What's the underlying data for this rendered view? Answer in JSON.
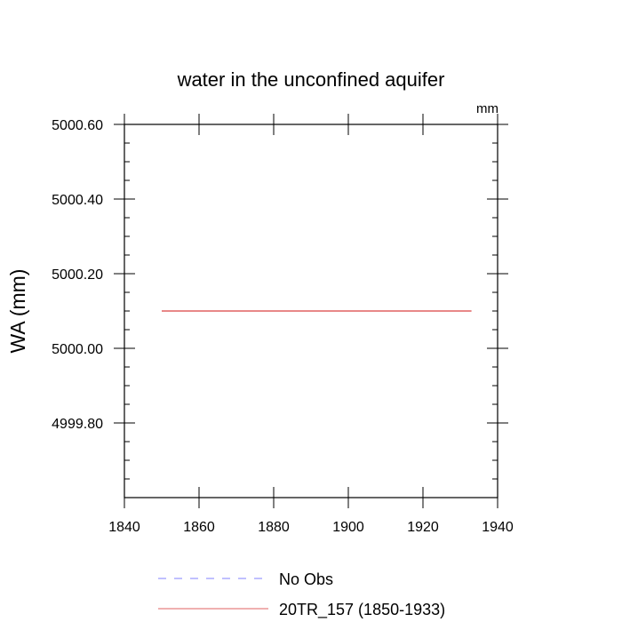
{
  "chart_data": {
    "type": "line",
    "title": "water in the unconfined aquifer",
    "units": "mm",
    "ylabel": "WA  (mm)",
    "xlabel": "",
    "xlim": [
      1840,
      1940
    ],
    "ylim": [
      4999.6,
      5000.6
    ],
    "x_ticks": [
      1840,
      1860,
      1880,
      1900,
      1920,
      1940
    ],
    "x_tick_labels": [
      "1840",
      "1860",
      "1880",
      "1900",
      "1920",
      "1940"
    ],
    "y_ticks": [
      4999.8,
      5000.0,
      5000.2,
      5000.4,
      5000.6
    ],
    "y_tick_labels": [
      "4999.80",
      "5000.00",
      "5000.20",
      "5000.40",
      "5000.60"
    ],
    "series": [
      {
        "name": "No Obs",
        "color": "#8080ff",
        "style": "dashed",
        "x": [],
        "y": []
      },
      {
        "name": "20TR_157 (1850-1933)",
        "color": "#e06060",
        "style": "solid",
        "x": [
          1850,
          1933
        ],
        "y": [
          5000.1,
          5000.1
        ]
      }
    ],
    "legend_position": "bottom",
    "grid": false
  }
}
